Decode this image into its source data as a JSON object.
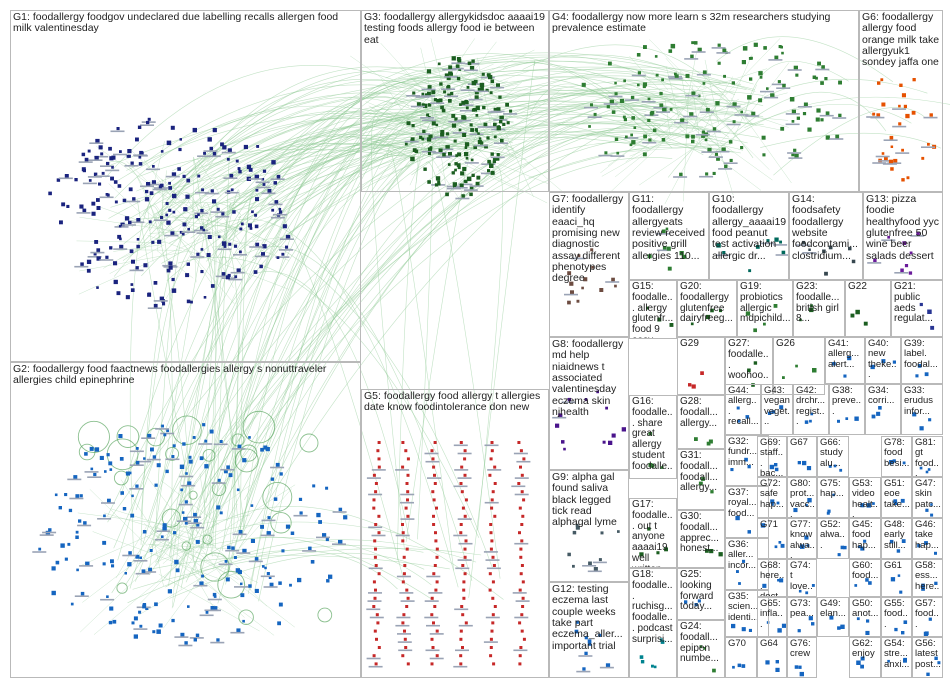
{
  "groups": [
    {
      "id": "G1",
      "label": "G1: foodallergy foodgov undeclared due labelling recalls allergen food milk valentinesday",
      "color": "#1a237e"
    },
    {
      "id": "G2",
      "label": "G2: foodallergy food faactnews foodallergies allergy s nonuttraveler allergies child epinephrine",
      "color": "#1565c0"
    },
    {
      "id": "G3",
      "label": "G3: foodallergy allergykidsdoc aaaai19 testing foods allergy food ie between eat",
      "color": "#1b5e20"
    },
    {
      "id": "G4",
      "label": "G4: foodallergy now more learn s 32m researchers studying prevalence estimate",
      "color": "#2e7d32"
    },
    {
      "id": "G5",
      "label": "G5: foodallergy food allergy t allergies date know foodintolerance don new",
      "color": "#c62828"
    },
    {
      "id": "G6",
      "label": "G6: foodallergy allergy food orange milk take allergyuk1 sondey jaffa one",
      "color": "#e65100"
    },
    {
      "id": "G7",
      "label": "G7: foodallergy identify eaaci_hq promising new diagnostic assay different phenotypes degree",
      "color": "#6d4c41"
    },
    {
      "id": "G8",
      "label": "G8: foodallergy md help niaidnews t associated valentinesday eczema skin njhealth",
      "color": "#4a148c"
    },
    {
      "id": "G9",
      "label": "G9: alpha gal found saliva black legged tick read alphagal lyme",
      "color": "#455a64"
    },
    {
      "id": "G10",
      "label": "G10: foodallergy allergy_aaaai19 food peanut test activation allergic dr...",
      "color": "#00695c"
    },
    {
      "id": "G11",
      "label": "G11: foodallergy allergyeats review received positive grill allergies 110...",
      "color": "#2e7d32"
    },
    {
      "id": "G12",
      "label": "G12: testing eczema last couple weeks take part eczema_aller... important trial",
      "color": "#1565c0"
    },
    {
      "id": "G13",
      "label": "G13: pizza foodie healthyfood yyc glutenfree 50 wine beer salads dessert",
      "color": "#6a1b9a"
    },
    {
      "id": "G14",
      "label": "G14: foodsafety foodallergy website foodcontami... clostridium...",
      "color": "#37474f"
    },
    {
      "id": "G15",
      "label": "G15: foodalle... allergy glutenfr... food 9 easy ways inclusiv...",
      "color": "#1b5e20"
    },
    {
      "id": "G16",
      "label": "G16: foodalle... share great allergy student foodalle...",
      "color": "#2e7d32"
    },
    {
      "id": "G17",
      "label": "G17: foodalle... out t anyone aaaai19 well written...",
      "color": "#1b5e20"
    },
    {
      "id": "G18",
      "label": "G18: foodalle... ruchisg... foodalle... podcast surprisi...",
      "color": "#00838f"
    },
    {
      "id": "G19",
      "label": "G19: probiotics allergic mdpichild...",
      "color": "#2e7d32"
    },
    {
      "id": "G20",
      "label": "G20: foodallergy glutenfree dairyfreeg...",
      "color": "#1b5e20"
    },
    {
      "id": "G21",
      "label": "G21: public aeds regulat...",
      "color": "#283593"
    },
    {
      "id": "G22",
      "label": "G22",
      "color": "#1b5e20"
    },
    {
      "id": "G23",
      "label": "G23: foodalle... british girl 8...",
      "color": "#1b5e20"
    },
    {
      "id": "G24",
      "label": "G24: foodall... epipen numbe...",
      "color": "#2e7d32"
    },
    {
      "id": "G25",
      "label": "G25: looking forward today...",
      "color": "#1565c0"
    },
    {
      "id": "G26",
      "label": "G26",
      "color": "#2e7d32"
    },
    {
      "id": "G27",
      "label": "G27: foodalle... woohoo...",
      "color": "#1b5e20"
    },
    {
      "id": "G28",
      "label": "G28: foodall... allergy...",
      "color": "#2e7d32"
    },
    {
      "id": "G29",
      "label": "G29",
      "color": "#c62828"
    },
    {
      "id": "G30",
      "label": "G30: foodall... apprec... honest...",
      "color": "#1b5e20"
    },
    {
      "id": "G31",
      "label": "G31: foodall... foodall... allergy...",
      "color": "#2e7d32"
    },
    {
      "id": "G32",
      "label": "G32: fundr... imm...",
      "color": "#1565c0"
    },
    {
      "id": "G33",
      "label": "G33: erudus infor...",
      "color": "#1565c0"
    },
    {
      "id": "G34",
      "label": "G34: corri...",
      "color": "#1565c0"
    },
    {
      "id": "G35",
      "label": "G35: scien... identi...",
      "color": "#1565c0"
    },
    {
      "id": "G36",
      "label": "G36: aller... incor...",
      "color": "#1565c0"
    },
    {
      "id": "G37",
      "label": "G37: royal... food...",
      "color": "#1565c0"
    },
    {
      "id": "G38",
      "label": "G38: preve...",
      "color": "#1565c0"
    },
    {
      "id": "G39",
      "label": "G39: label. foodal...",
      "color": "#1565c0"
    },
    {
      "id": "G40",
      "label": "G40: new theke...",
      "color": "#1565c0"
    },
    {
      "id": "G41",
      "label": "G41: allerg... alert...",
      "color": "#1565c0"
    },
    {
      "id": "G42",
      "label": "G42: drchr... regist...",
      "color": "#1565c0"
    },
    {
      "id": "G43",
      "label": "G43: vegan veget...",
      "color": "#1565c0"
    },
    {
      "id": "G44",
      "label": "G44: allerg... recall...",
      "color": "#1565c0"
    },
    {
      "id": "G45",
      "label": "G45: food hap...",
      "color": "#1565c0"
    },
    {
      "id": "G46",
      "label": "G46: take hap...",
      "color": "#1565c0"
    },
    {
      "id": "G47",
      "label": "G47: skin patc...",
      "color": "#1565c0"
    },
    {
      "id": "G48",
      "label": "G48: early still...",
      "color": "#1565c0"
    },
    {
      "id": "G49",
      "label": "G49: elan...",
      "color": "#1565c0"
    },
    {
      "id": "G50",
      "label": "G50: anot...",
      "color": "#1565c0"
    },
    {
      "id": "G51",
      "label": "G51: eoe take...",
      "color": "#1565c0"
    },
    {
      "id": "G52",
      "label": "G52: alwa...",
      "color": "#1565c0"
    },
    {
      "id": "G53",
      "label": "G53: video healt...",
      "color": "#1565c0"
    },
    {
      "id": "G54",
      "label": "G54: stre... anxi...",
      "color": "#1565c0"
    },
    {
      "id": "G55",
      "label": "G55: food...",
      "color": "#1565c0"
    },
    {
      "id": "G56",
      "label": "G56: latest post...",
      "color": "#1565c0"
    },
    {
      "id": "G57",
      "label": "G57: food...",
      "color": "#1565c0"
    },
    {
      "id": "G58",
      "label": "G58: ess... here...",
      "color": "#1565c0"
    },
    {
      "id": "G59",
      "label": "G59: anot...",
      "color": "#1565c0"
    },
    {
      "id": "G60",
      "label": "G60: food...",
      "color": "#1565c0"
    },
    {
      "id": "G61",
      "label": "G61",
      "color": "#1565c0"
    },
    {
      "id": "G62",
      "label": "G62: enjoy",
      "color": "#1565c0"
    },
    {
      "id": "G63",
      "label": "G63",
      "color": "#1565c0"
    },
    {
      "id": "G64",
      "label": "G64",
      "color": "#1565c0"
    },
    {
      "id": "G65",
      "label": "G65: infla...",
      "color": "#1565c0"
    },
    {
      "id": "G66",
      "label": "G66: study alu...",
      "color": "#1565c0"
    },
    {
      "id": "G67",
      "label": "G67",
      "color": "#1565c0"
    },
    {
      "id": "G68",
      "label": "G68: here... doct...",
      "color": "#1565c0"
    },
    {
      "id": "G69",
      "label": "G69: staff... bac...",
      "color": "#1565c0"
    },
    {
      "id": "G70",
      "label": "G70",
      "color": "#1565c0"
    },
    {
      "id": "G71",
      "label": "G71",
      "color": "#1565c0"
    },
    {
      "id": "G72",
      "label": "G72: safe hap...",
      "color": "#1565c0"
    },
    {
      "id": "G73",
      "label": "G73: pea...",
      "color": "#1565c0"
    },
    {
      "id": "G74",
      "label": "G74: t love...",
      "color": "#1565c0"
    },
    {
      "id": "G75",
      "label": "G75: hap...",
      "color": "#1565c0"
    },
    {
      "id": "G76",
      "label": "G76: crew",
      "color": "#1565c0"
    },
    {
      "id": "G77",
      "label": "G77: know alwa...",
      "color": "#1565c0"
    },
    {
      "id": "G78",
      "label": "G78: food besi...",
      "color": "#1565c0"
    },
    {
      "id": "G79",
      "label": "G79: day",
      "color": "#1565c0"
    },
    {
      "id": "G80",
      "label": "G80: prot... vacc...",
      "color": "#1565c0"
    },
    {
      "id": "G81",
      "label": "G81: gt food...",
      "color": "#1565c0"
    }
  ]
}
